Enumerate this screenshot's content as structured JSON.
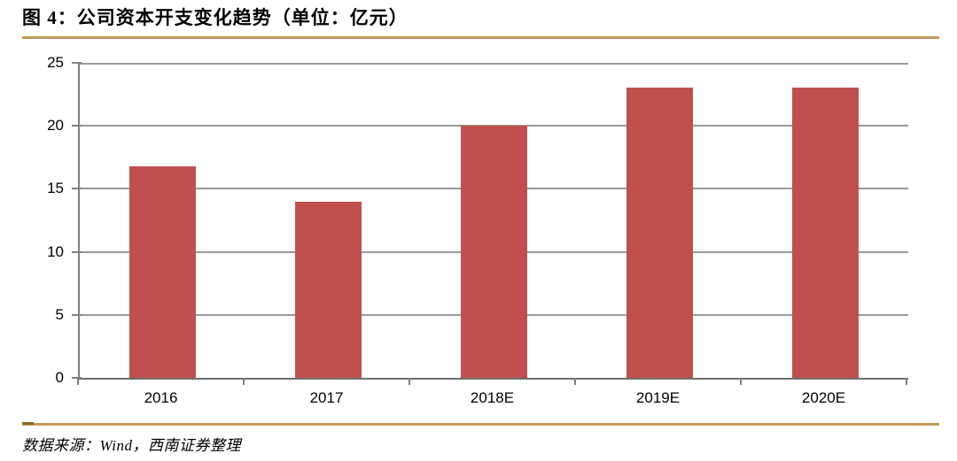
{
  "figure": {
    "title": "图 4：公司资本开支变化趋势（单位：亿元）",
    "source": "数据来源：Wind，西南证券整理"
  },
  "colors": {
    "bar": "#c0504d",
    "gridline": "#9a9a9a",
    "axis": "#808080",
    "rule_gold": "#c19c59",
    "rule_dark": "#8a6a28",
    "text": "#000000"
  },
  "chart_data": {
    "type": "bar",
    "title": "图 4：公司资本开支变化趋势（单位：亿元）",
    "unit": "亿元",
    "categories": [
      "2016",
      "2017",
      "2018E",
      "2019E",
      "2020E"
    ],
    "values": [
      16.8,
      14,
      20,
      23,
      23
    ],
    "xlabel": "",
    "ylabel": "",
    "ylim": [
      0,
      25
    ],
    "yticks": [
      0,
      5,
      10,
      15,
      20,
      25
    ],
    "grid": true,
    "legend": false,
    "source_note": "数据来源：Wind，西南证券整理"
  }
}
